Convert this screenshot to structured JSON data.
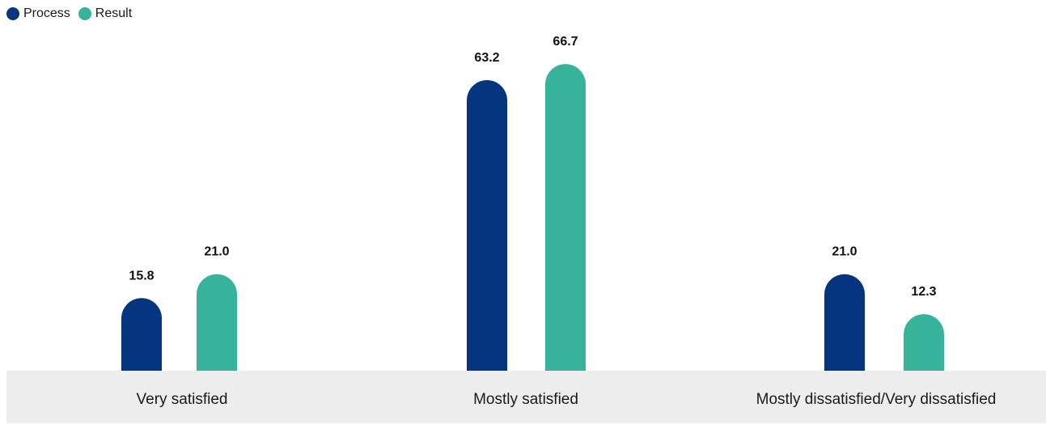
{
  "chart_data": {
    "type": "bar",
    "categories": [
      "Very satisfied",
      "Mostly satisfied",
      "Mostly dissatisfied/Very dissatisfied"
    ],
    "series": [
      {
        "name": "Process",
        "values": [
          15.8,
          63.2,
          21.0
        ],
        "labels": [
          "15.8",
          "63.2",
          "21.0"
        ],
        "color": "#06357f"
      },
      {
        "name": "Result",
        "values": [
          21.0,
          66.7,
          12.3
        ],
        "labels": [
          "21.0",
          "66.7",
          "12.3"
        ],
        "color": "#38b39b"
      }
    ],
    "ylim": [
      0,
      72
    ],
    "grid": false,
    "legend_position": "top-left"
  }
}
